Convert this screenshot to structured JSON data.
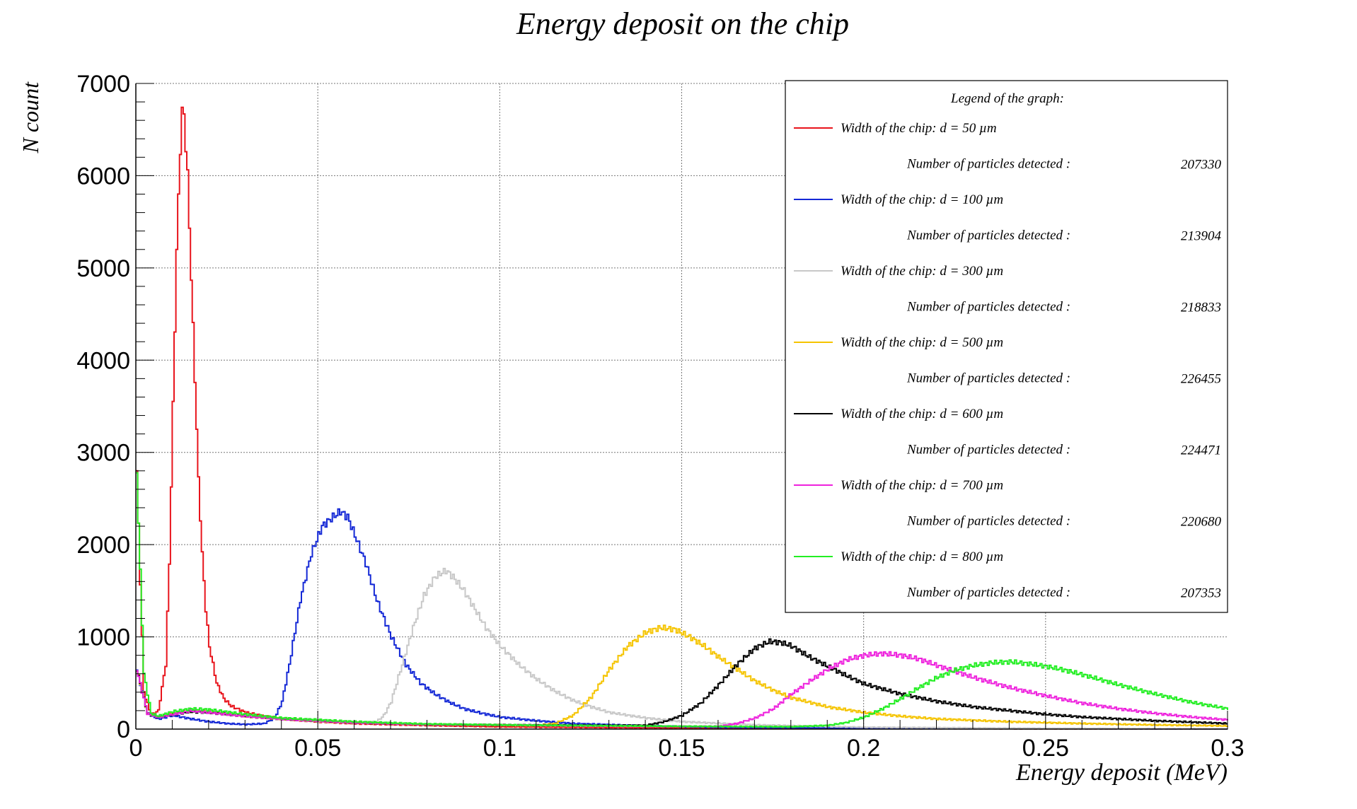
{
  "chart_data": {
    "type": "line",
    "title": "Energy deposit on the chip",
    "xlabel": "Energy deposit (MeV)",
    "ylabel": "N count",
    "xlim": [
      0,
      0.3
    ],
    "ylim": [
      0,
      7000
    ],
    "x_ticks": [
      "0",
      "0.05",
      "0.1",
      "0.15",
      "0.2",
      "0.25",
      "0.3"
    ],
    "y_ticks": [
      "0",
      "1000",
      "2000",
      "3000",
      "4000",
      "5000",
      "6000",
      "7000"
    ],
    "grid": true,
    "legend": {
      "title": "Legend of the graph:",
      "placement": "top-right",
      "count_label": "Number of particles detected :"
    },
    "series": [
      {
        "name": "Width of the chip: d = 50 µm",
        "color": "#e8141c",
        "count": "207330",
        "points": [
          [
            0,
            2800
          ],
          [
            0.002,
            400
          ],
          [
            0.004,
            150
          ],
          [
            0.006,
            200
          ],
          [
            0.008,
            700
          ],
          [
            0.009,
            1800
          ],
          [
            0.01,
            3500
          ],
          [
            0.011,
            5200
          ],
          [
            0.012,
            6300
          ],
          [
            0.0125,
            6700
          ],
          [
            0.013,
            6650
          ],
          [
            0.014,
            6000
          ],
          [
            0.015,
            4900
          ],
          [
            0.016,
            3800
          ],
          [
            0.017,
            2700
          ],
          [
            0.018,
            1900
          ],
          [
            0.019,
            1300
          ],
          [
            0.02,
            900
          ],
          [
            0.022,
            500
          ],
          [
            0.024,
            330
          ],
          [
            0.026,
            250
          ],
          [
            0.03,
            180
          ],
          [
            0.035,
            140
          ],
          [
            0.04,
            110
          ],
          [
            0.05,
            80
          ],
          [
            0.06,
            60
          ],
          [
            0.08,
            40
          ],
          [
            0.1,
            25
          ],
          [
            0.15,
            12
          ],
          [
            0.2,
            6
          ],
          [
            0.3,
            2
          ]
        ]
      },
      {
        "name": "Width of the chip: d = 100 µm",
        "color": "#1428d6",
        "count": "213904",
        "points": [
          [
            0,
            650
          ],
          [
            0.003,
            170
          ],
          [
            0.006,
            110
          ],
          [
            0.01,
            150
          ],
          [
            0.015,
            110
          ],
          [
            0.02,
            80
          ],
          [
            0.025,
            60
          ],
          [
            0.03,
            50
          ],
          [
            0.035,
            60
          ],
          [
            0.038,
            120
          ],
          [
            0.04,
            300
          ],
          [
            0.042,
            700
          ],
          [
            0.045,
            1400
          ],
          [
            0.048,
            1900
          ],
          [
            0.051,
            2200
          ],
          [
            0.054,
            2300
          ],
          [
            0.056,
            2360
          ],
          [
            0.058,
            2300
          ],
          [
            0.06,
            2100
          ],
          [
            0.063,
            1800
          ],
          [
            0.066,
            1400
          ],
          [
            0.07,
            1000
          ],
          [
            0.074,
            700
          ],
          [
            0.078,
            500
          ],
          [
            0.082,
            380
          ],
          [
            0.086,
            290
          ],
          [
            0.09,
            220
          ],
          [
            0.095,
            170
          ],
          [
            0.1,
            130
          ],
          [
            0.11,
            90
          ],
          [
            0.12,
            60
          ],
          [
            0.14,
            35
          ],
          [
            0.16,
            20
          ],
          [
            0.2,
            10
          ],
          [
            0.3,
            2
          ]
        ]
      },
      {
        "name": "Width of the chip: d = 300 µm",
        "color": "#c8c8c8",
        "count": "218833",
        "points": [
          [
            0,
            650
          ],
          [
            0.003,
            170
          ],
          [
            0.006,
            130
          ],
          [
            0.01,
            170
          ],
          [
            0.015,
            200
          ],
          [
            0.02,
            180
          ],
          [
            0.03,
            140
          ],
          [
            0.04,
            110
          ],
          [
            0.05,
            85
          ],
          [
            0.06,
            70
          ],
          [
            0.066,
            80
          ],
          [
            0.068,
            150
          ],
          [
            0.07,
            300
          ],
          [
            0.073,
            700
          ],
          [
            0.076,
            1100
          ],
          [
            0.079,
            1450
          ],
          [
            0.082,
            1650
          ],
          [
            0.085,
            1720
          ],
          [
            0.087,
            1650
          ],
          [
            0.09,
            1500
          ],
          [
            0.093,
            1300
          ],
          [
            0.096,
            1100
          ],
          [
            0.1,
            900
          ],
          [
            0.105,
            700
          ],
          [
            0.11,
            540
          ],
          [
            0.115,
            410
          ],
          [
            0.12,
            310
          ],
          [
            0.125,
            240
          ],
          [
            0.13,
            180
          ],
          [
            0.14,
            120
          ],
          [
            0.15,
            80
          ],
          [
            0.17,
            45
          ],
          [
            0.2,
            20
          ],
          [
            0.25,
            8
          ],
          [
            0.3,
            3
          ]
        ]
      },
      {
        "name": "Width of the chip: d = 500 µm",
        "color": "#f5c400",
        "count": "226455",
        "points": [
          [
            0,
            650
          ],
          [
            0.003,
            170
          ],
          [
            0.006,
            130
          ],
          [
            0.01,
            170
          ],
          [
            0.015,
            200
          ],
          [
            0.02,
            190
          ],
          [
            0.03,
            140
          ],
          [
            0.04,
            110
          ],
          [
            0.06,
            70
          ],
          [
            0.08,
            50
          ],
          [
            0.1,
            45
          ],
          [
            0.11,
            40
          ],
          [
            0.115,
            60
          ],
          [
            0.12,
            150
          ],
          [
            0.125,
            350
          ],
          [
            0.13,
            650
          ],
          [
            0.135,
            900
          ],
          [
            0.14,
            1050
          ],
          [
            0.144,
            1100
          ],
          [
            0.148,
            1080
          ],
          [
            0.152,
            1000
          ],
          [
            0.156,
            900
          ],
          [
            0.16,
            780
          ],
          [
            0.165,
            650
          ],
          [
            0.17,
            520
          ],
          [
            0.175,
            420
          ],
          [
            0.18,
            340
          ],
          [
            0.19,
            240
          ],
          [
            0.2,
            180
          ],
          [
            0.21,
            140
          ],
          [
            0.22,
            110
          ],
          [
            0.24,
            80
          ],
          [
            0.26,
            60
          ],
          [
            0.28,
            45
          ],
          [
            0.3,
            35
          ]
        ]
      },
      {
        "name": "Width of the chip: d = 600 µm",
        "color": "#000000",
        "count": "224471",
        "points": [
          [
            0,
            650
          ],
          [
            0.003,
            170
          ],
          [
            0.006,
            130
          ],
          [
            0.01,
            160
          ],
          [
            0.015,
            190
          ],
          [
            0.02,
            180
          ],
          [
            0.03,
            140
          ],
          [
            0.04,
            110
          ],
          [
            0.06,
            70
          ],
          [
            0.08,
            50
          ],
          [
            0.1,
            45
          ],
          [
            0.13,
            40
          ],
          [
            0.14,
            40
          ],
          [
            0.145,
            80
          ],
          [
            0.15,
            150
          ],
          [
            0.155,
            280
          ],
          [
            0.16,
            480
          ],
          [
            0.165,
            700
          ],
          [
            0.17,
            880
          ],
          [
            0.174,
            950
          ],
          [
            0.177,
            940
          ],
          [
            0.18,
            900
          ],
          [
            0.185,
            780
          ],
          [
            0.19,
            680
          ],
          [
            0.195,
            580
          ],
          [
            0.2,
            490
          ],
          [
            0.21,
            380
          ],
          [
            0.22,
            300
          ],
          [
            0.23,
            240
          ],
          [
            0.24,
            200
          ],
          [
            0.25,
            160
          ],
          [
            0.26,
            130
          ],
          [
            0.28,
            90
          ],
          [
            0.3,
            60
          ]
        ]
      },
      {
        "name": "Width of the chip: d = 700 µm",
        "color": "#ee22dd",
        "count": "220680",
        "points": [
          [
            0,
            650
          ],
          [
            0.003,
            170
          ],
          [
            0.006,
            130
          ],
          [
            0.01,
            160
          ],
          [
            0.015,
            200
          ],
          [
            0.02,
            180
          ],
          [
            0.03,
            140
          ],
          [
            0.04,
            110
          ],
          [
            0.06,
            70
          ],
          [
            0.08,
            50
          ],
          [
            0.1,
            45
          ],
          [
            0.14,
            30
          ],
          [
            0.16,
            30
          ],
          [
            0.165,
            60
          ],
          [
            0.17,
            120
          ],
          [
            0.175,
            220
          ],
          [
            0.18,
            380
          ],
          [
            0.185,
            520
          ],
          [
            0.19,
            650
          ],
          [
            0.195,
            750
          ],
          [
            0.2,
            800
          ],
          [
            0.205,
            820
          ],
          [
            0.21,
            800
          ],
          [
            0.215,
            760
          ],
          [
            0.22,
            690
          ],
          [
            0.23,
            560
          ],
          [
            0.24,
            450
          ],
          [
            0.25,
            360
          ],
          [
            0.26,
            280
          ],
          [
            0.27,
            220
          ],
          [
            0.28,
            170
          ],
          [
            0.29,
            130
          ],
          [
            0.3,
            100
          ]
        ]
      },
      {
        "name": "Width of the chip: d = 800 µm",
        "color": "#22ee22",
        "count": "207353",
        "points": [
          [
            0,
            2800
          ],
          [
            0.002,
            600
          ],
          [
            0.004,
            170
          ],
          [
            0.006,
            140
          ],
          [
            0.01,
            190
          ],
          [
            0.015,
            220
          ],
          [
            0.02,
            210
          ],
          [
            0.03,
            160
          ],
          [
            0.04,
            120
          ],
          [
            0.06,
            80
          ],
          [
            0.08,
            55
          ],
          [
            0.1,
            45
          ],
          [
            0.15,
            30
          ],
          [
            0.18,
            25
          ],
          [
            0.19,
            40
          ],
          [
            0.195,
            70
          ],
          [
            0.2,
            130
          ],
          [
            0.205,
            220
          ],
          [
            0.21,
            330
          ],
          [
            0.215,
            450
          ],
          [
            0.22,
            560
          ],
          [
            0.225,
            640
          ],
          [
            0.23,
            690
          ],
          [
            0.235,
            720
          ],
          [
            0.24,
            730
          ],
          [
            0.245,
            710
          ],
          [
            0.25,
            680
          ],
          [
            0.255,
            640
          ],
          [
            0.26,
            590
          ],
          [
            0.27,
            480
          ],
          [
            0.28,
            380
          ],
          [
            0.29,
            290
          ],
          [
            0.3,
            220
          ]
        ]
      }
    ]
  }
}
